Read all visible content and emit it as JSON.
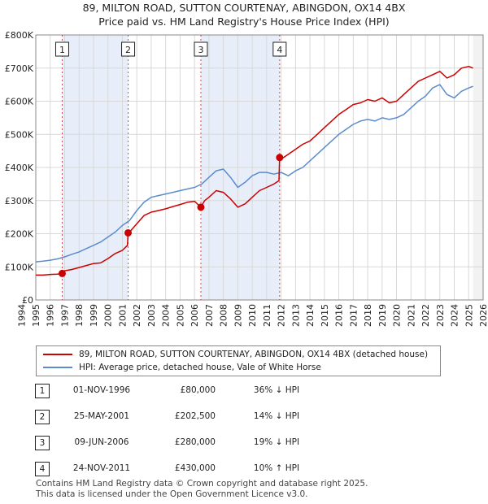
{
  "title_line1": "89, MILTON ROAD, SUTTON COURTENAY, ABINGDON, OX14 4BX",
  "title_line2": "Price paid vs. HM Land Registry's House Price Index (HPI)",
  "colors": {
    "property": "#cc0000",
    "hpi": "#5b8ccc",
    "shade": "#e8eef9",
    "marker_line": "#cc0000"
  },
  "legend": {
    "property": "89, MILTON ROAD, SUTTON COURTENAY, ABINGDON, OX14 4BX (detached house)",
    "hpi": "HPI: Average price, detached house, Vale of White Horse"
  },
  "sales": [
    {
      "num": "1",
      "date": "01-NOV-1996",
      "price": "£80,000",
      "hpi": "36% ↓ HPI"
    },
    {
      "num": "2",
      "date": "25-MAY-2001",
      "price": "£202,500",
      "hpi": "14% ↓ HPI"
    },
    {
      "num": "3",
      "date": "09-JUN-2006",
      "price": "£280,000",
      "hpi": "19% ↓ HPI"
    },
    {
      "num": "4",
      "date": "24-NOV-2011",
      "price": "£430,000",
      "hpi": "10% ↑ HPI"
    }
  ],
  "footer_line1": "Contains HM Land Registry data © Crown copyright and database right 2025.",
  "footer_line2": "This data is licensed under the Open Government Licence v3.0.",
  "chart_data": {
    "type": "line",
    "title": "89, MILTON ROAD, SUTTON COURTENAY, ABINGDON, OX14 4BX — Price paid vs. HM Land Registry's House Price Index (HPI)",
    "xlabel": "",
    "ylabel": "",
    "xlim": [
      1995.0,
      2026.0
    ],
    "ylim": [
      0,
      800000
    ],
    "x_ticks": [
      1994,
      1995,
      1996,
      1997,
      1998,
      1999,
      2000,
      2001,
      2002,
      2003,
      2004,
      2005,
      2006,
      2007,
      2008,
      2009,
      2010,
      2011,
      2012,
      2013,
      2014,
      2015,
      2016,
      2017,
      2018,
      2019,
      2020,
      2021,
      2022,
      2023,
      2024,
      2025,
      2026
    ],
    "y_ticks": [
      {
        "value": 0,
        "label": "£0"
      },
      {
        "value": 100000,
        "label": "£100K"
      },
      {
        "value": 200000,
        "label": "£200K"
      },
      {
        "value": 300000,
        "label": "£300K"
      },
      {
        "value": 400000,
        "label": "£400K"
      },
      {
        "value": 500000,
        "label": "£500K"
      },
      {
        "value": 600000,
        "label": "£600K"
      },
      {
        "value": 700000,
        "label": "£700K"
      },
      {
        "value": 800000,
        "label": "£800K"
      }
    ],
    "shaded_periods": [
      [
        1996.83,
        2001.4
      ],
      [
        2006.44,
        2011.9
      ]
    ],
    "sale_markers": [
      {
        "label": "1",
        "x": 1996.83,
        "y": 80000
      },
      {
        "label": "2",
        "x": 2001.4,
        "y": 202500
      },
      {
        "label": "3",
        "x": 2006.44,
        "y": 280000
      },
      {
        "label": "4",
        "x": 2011.9,
        "y": 430000
      }
    ],
    "series": [
      {
        "name": "89, MILTON ROAD, SUTTON COURTENAY, ABINGDON, OX14 4BX (detached house)",
        "color": "#cc0000",
        "x": [
          1995.0,
          1995.5,
          1996.0,
          1996.5,
          1996.83,
          1997.0,
          1997.5,
          1998.0,
          1998.5,
          1999.0,
          1999.5,
          2000.0,
          2000.5,
          2001.0,
          2001.35,
          2001.4,
          2001.6,
          2002.0,
          2002.5,
          2003.0,
          2003.5,
          2004.0,
          2004.5,
          2005.0,
          2005.5,
          2006.0,
          2006.44,
          2006.7,
          2007.0,
          2007.5,
          2008.0,
          2008.5,
          2009.0,
          2009.5,
          2010.0,
          2010.5,
          2011.0,
          2011.5,
          2011.85,
          2011.9,
          2012.0,
          2012.5,
          2013.0,
          2013.5,
          2014.0,
          2014.5,
          2015.0,
          2015.5,
          2016.0,
          2016.5,
          2017.0,
          2017.5,
          2018.0,
          2018.5,
          2019.0,
          2019.5,
          2020.0,
          2020.5,
          2021.0,
          2021.5,
          2022.0,
          2022.5,
          2023.0,
          2023.5,
          2024.0,
          2024.5,
          2025.0,
          2025.3
        ],
        "values": [
          75000,
          75000,
          77000,
          78000,
          80000,
          88000,
          92000,
          98000,
          104000,
          110000,
          112000,
          125000,
          140000,
          150000,
          165000,
          202500,
          210000,
          230000,
          255000,
          265000,
          270000,
          275000,
          282000,
          288000,
          295000,
          298000,
          280000,
          300000,
          310000,
          330000,
          325000,
          305000,
          280000,
          290000,
          310000,
          330000,
          340000,
          350000,
          360000,
          430000,
          425000,
          440000,
          455000,
          470000,
          480000,
          500000,
          520000,
          540000,
          560000,
          575000,
          590000,
          595000,
          605000,
          600000,
          610000,
          595000,
          600000,
          620000,
          640000,
          660000,
          670000,
          680000,
          690000,
          670000,
          680000,
          700000,
          705000,
          700000
        ]
      },
      {
        "name": "HPI: Average price, detached house, Vale of White Horse",
        "color": "#5b8ccc",
        "x": [
          1995.0,
          1995.5,
          1996.0,
          1996.5,
          1997.0,
          1997.5,
          1998.0,
          1998.5,
          1999.0,
          1999.5,
          2000.0,
          2000.5,
          2001.0,
          2001.5,
          2002.0,
          2002.5,
          2003.0,
          2003.5,
          2004.0,
          2004.5,
          2005.0,
          2005.5,
          2006.0,
          2006.5,
          2007.0,
          2007.5,
          2008.0,
          2008.5,
          2009.0,
          2009.5,
          2010.0,
          2010.5,
          2011.0,
          2011.5,
          2012.0,
          2012.5,
          2013.0,
          2013.5,
          2014.0,
          2014.5,
          2015.0,
          2015.5,
          2016.0,
          2016.5,
          2017.0,
          2017.5,
          2018.0,
          2018.5,
          2019.0,
          2019.5,
          2020.0,
          2020.5,
          2021.0,
          2021.5,
          2022.0,
          2022.5,
          2023.0,
          2023.5,
          2024.0,
          2024.5,
          2025.0,
          2025.3
        ],
        "values": [
          115000,
          117000,
          120000,
          124000,
          130000,
          138000,
          145000,
          155000,
          165000,
          175000,
          190000,
          205000,
          225000,
          240000,
          270000,
          295000,
          310000,
          315000,
          320000,
          325000,
          330000,
          335000,
          340000,
          350000,
          370000,
          390000,
          395000,
          370000,
          340000,
          355000,
          375000,
          385000,
          385000,
          380000,
          385000,
          375000,
          390000,
          400000,
          420000,
          440000,
          460000,
          480000,
          500000,
          515000,
          530000,
          540000,
          545000,
          540000,
          550000,
          545000,
          550000,
          560000,
          580000,
          600000,
          615000,
          640000,
          650000,
          620000,
          610000,
          630000,
          640000,
          645000
        ]
      }
    ]
  }
}
